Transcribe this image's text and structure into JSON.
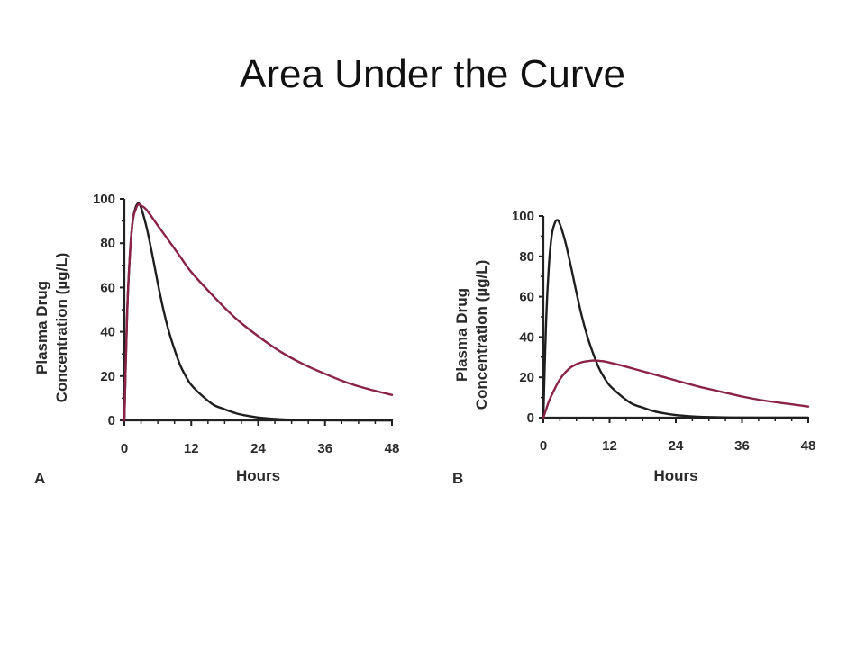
{
  "slide": {
    "title": "Area Under the Curve"
  },
  "colors": {
    "black_curve": "#1e1e1e",
    "red_curve": "#8b2346",
    "axis": "#222222"
  },
  "chart_data": [
    {
      "panel_label": "A",
      "type": "line",
      "xlabel": "Hours",
      "ylabel_line1": "Plasma Drug",
      "ylabel_line2": "Concentration (µg/L)",
      "xlim": [
        0,
        48
      ],
      "ylim": [
        0,
        100
      ],
      "xticks": [
        0,
        12,
        24,
        36,
        48
      ],
      "yticks": [
        0,
        20,
        40,
        60,
        80,
        100
      ],
      "grid": false,
      "series": [
        {
          "color": "#1e1e1e",
          "x": [
            0,
            0.5,
            1,
            1.5,
            2,
            2.5,
            3,
            4,
            5,
            6,
            7,
            8,
            9,
            10,
            11,
            12,
            14,
            16,
            18,
            20,
            22,
            24,
            26,
            28,
            30,
            34,
            40,
            48
          ],
          "y": [
            0,
            48,
            75,
            90,
            96,
            98,
            96,
            87,
            75,
            62,
            50,
            40,
            32,
            25,
            20,
            16,
            11,
            7,
            5,
            3.2,
            2.1,
            1.3,
            0.8,
            0.5,
            0.3,
            0.1,
            0,
            0
          ]
        },
        {
          "color": "#8b2346",
          "x": [
            0,
            0.5,
            1,
            1.5,
            2,
            2.5,
            3,
            4,
            6,
            8,
            10,
            12,
            16,
            20,
            24,
            28,
            32,
            36,
            40,
            44,
            48
          ],
          "y": [
            0,
            48,
            75,
            90,
            95,
            97.5,
            97,
            95,
            88,
            81,
            74,
            67,
            56,
            46,
            38,
            31,
            25.5,
            21,
            17,
            14,
            11.5
          ]
        }
      ]
    },
    {
      "panel_label": "B",
      "type": "line",
      "xlabel": "Hours",
      "ylabel_line1": "Plasma Drug",
      "ylabel_line2": "Concentration (µg/L)",
      "xlim": [
        0,
        48
      ],
      "ylim": [
        0,
        100
      ],
      "xticks": [
        0,
        12,
        24,
        36,
        48
      ],
      "yticks": [
        0,
        20,
        40,
        60,
        80,
        100
      ],
      "grid": false,
      "series": [
        {
          "color": "#1e1e1e",
          "x": [
            0,
            0.5,
            1,
            1.5,
            2,
            2.5,
            3,
            4,
            5,
            6,
            7,
            8,
            9,
            10,
            11,
            12,
            14,
            16,
            18,
            20,
            22,
            24,
            26,
            28,
            30,
            34,
            40,
            48
          ],
          "y": [
            0,
            48,
            75,
            90,
            96,
            98,
            96,
            87,
            75,
            62,
            50,
            40,
            32,
            25,
            20,
            16,
            11,
            7,
            5,
            3.2,
            2.1,
            1.3,
            0.8,
            0.5,
            0.3,
            0.1,
            0,
            0
          ]
        },
        {
          "color": "#8b2346",
          "x": [
            0,
            0.5,
            1,
            2,
            3,
            4,
            5,
            6,
            7,
            8,
            9,
            10,
            11,
            12,
            14,
            16,
            20,
            24,
            28,
            32,
            36,
            40,
            44,
            48
          ],
          "y": [
            0,
            4,
            8,
            14,
            19,
            22.5,
            25,
            26.5,
            27.5,
            28,
            28.3,
            28.2,
            27.9,
            27.3,
            26,
            24.5,
            21.5,
            18.5,
            15.5,
            13,
            10.5,
            8.5,
            7,
            5.5
          ]
        }
      ]
    }
  ]
}
